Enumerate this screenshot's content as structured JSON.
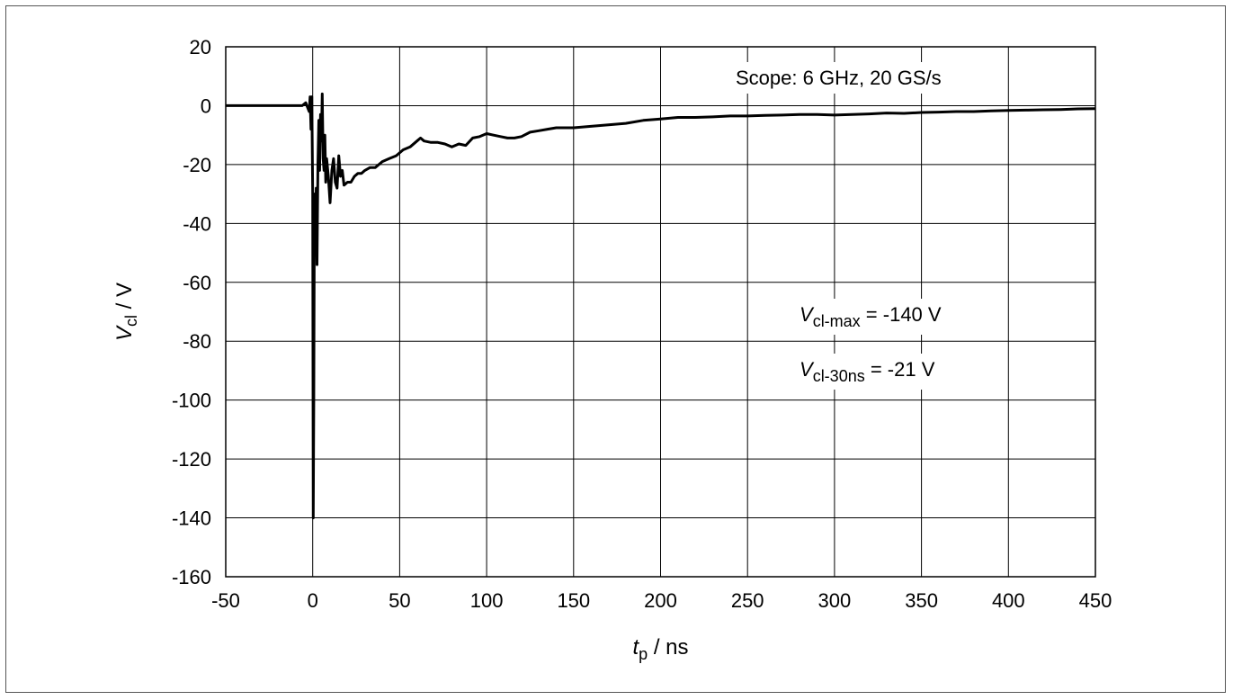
{
  "chart_data": {
    "type": "line",
    "title": "",
    "xlabel": {
      "symbol": "t",
      "subscript": "p",
      "unit": " / ns"
    },
    "ylabel": {
      "symbol": "V",
      "subscript": "cl",
      "unit": " / V"
    },
    "xlim": [
      -50,
      450
    ],
    "ylim": [
      -160,
      20
    ],
    "x_ticks": [
      -50,
      0,
      50,
      100,
      150,
      200,
      250,
      300,
      350,
      400,
      450
    ],
    "y_ticks": [
      20,
      0,
      -20,
      -40,
      -60,
      -80,
      -100,
      -120,
      -140,
      -160
    ],
    "grid": true,
    "line_color": "#000000",
    "annotations": {
      "scope": "Scope: 6 GHz, 20 GS/s",
      "vmax": {
        "symbol": "V",
        "subscript": "cl-max",
        "text": " = -140 V"
      },
      "v30": {
        "symbol": "V",
        "subscript": "cl-30ns",
        "text": " = -21 V"
      }
    },
    "series": [
      {
        "x": [
          -50,
          -40,
          -30,
          -20,
          -10,
          -6,
          -4,
          -2,
          -1.5,
          -1,
          -0.5,
          0,
          0.3,
          0.6,
          1,
          1.5,
          2,
          2.5,
          3,
          3.5,
          4,
          4.5,
          5,
          5.5,
          6,
          6.5,
          7,
          7.5,
          8,
          9,
          10,
          11,
          12,
          13,
          14,
          15,
          16,
          17,
          18,
          20,
          22,
          24,
          26,
          28,
          30,
          33,
          36,
          40,
          44,
          48,
          52,
          56,
          60,
          62,
          64,
          68,
          72,
          76,
          80,
          84,
          88,
          92,
          96,
          100,
          104,
          108,
          112,
          116,
          120,
          125,
          130,
          135,
          140,
          145,
          150,
          160,
          170,
          180,
          190,
          200,
          210,
          220,
          230,
          240,
          250,
          260,
          270,
          280,
          290,
          300,
          310,
          320,
          330,
          340,
          350,
          360,
          370,
          380,
          390,
          400,
          410,
          420,
          430,
          440,
          450
        ],
        "y": [
          0,
          0,
          0,
          0,
          0,
          0,
          1,
          -2,
          3,
          -8,
          3,
          -30,
          -140,
          -100,
          -30,
          -50,
          -28,
          -54,
          -20,
          -5,
          -22,
          -3,
          -12,
          4,
          -18,
          -22,
          -10,
          -26,
          -18,
          -24,
          -33,
          -22,
          -18,
          -26,
          -28,
          -17,
          -24,
          -22,
          -27,
          -26,
          -26,
          -24,
          -23,
          -23,
          -22,
          -21,
          -21,
          -19,
          -18,
          -17,
          -15,
          -14,
          -12,
          -11,
          -12,
          -12.5,
          -12.5,
          -13,
          -14,
          -13,
          -13.5,
          -11,
          -10.5,
          -9.5,
          -10,
          -10.5,
          -11,
          -11,
          -10.5,
          -9,
          -8.5,
          -8,
          -7.5,
          -7.5,
          -7.5,
          -7,
          -6.5,
          -6,
          -5,
          -4.5,
          -4,
          -4,
          -3.8,
          -3.5,
          -3.5,
          -3.3,
          -3.2,
          -3,
          -3,
          -3.2,
          -3,
          -2.8,
          -2.5,
          -2.6,
          -2.3,
          -2.2,
          -2,
          -2,
          -1.8,
          -1.6,
          -1.5,
          -1.4,
          -1.3,
          -1.1,
          -1
        ]
      }
    ]
  }
}
